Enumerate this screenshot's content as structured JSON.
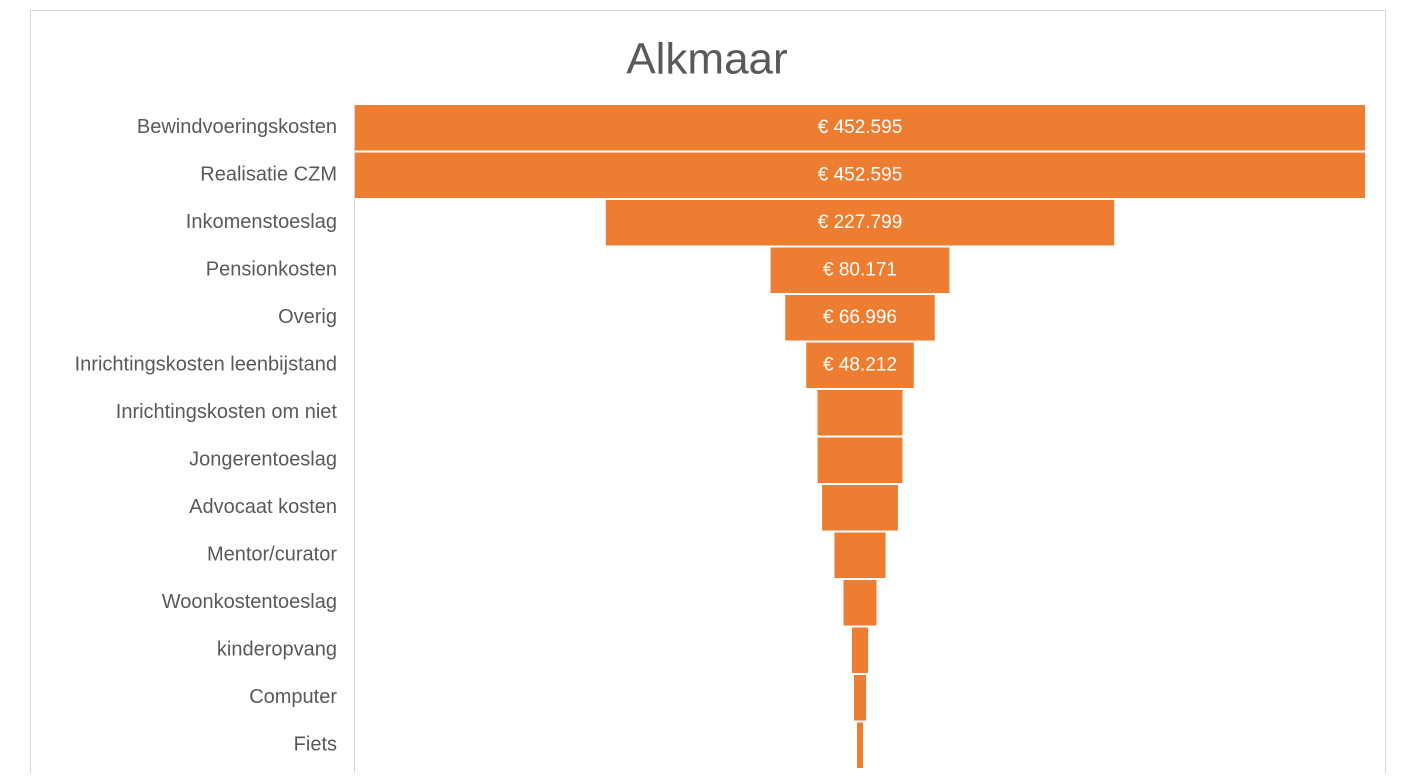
{
  "chart_data": {
    "type": "funnel",
    "title": "Alkmaar",
    "categories": [
      "Bewindvoeringskosten",
      "Realisatie CZM",
      "Inkomenstoeslag",
      "Pensionkosten",
      "Overig",
      "Inrichtingskosten leenbijstand",
      "Inrichtingskosten om niet",
      "Jongerentoeslag",
      "Advocaat kosten",
      "Mentor/curator",
      "Woonkostentoeslag",
      "kinderopvang",
      "Computer",
      "Fiets"
    ],
    "values": [
      452595,
      452595,
      227799,
      80171,
      66996,
      48212,
      38100,
      38000,
      34000,
      22900,
      14800,
      7200,
      5400,
      2700
    ],
    "value_labels": [
      "€ 452.595",
      "€ 452.595",
      "€ 227.799",
      "€ 80.171",
      "€ 66.996",
      "€ 48.212",
      null,
      null,
      null,
      null,
      null,
      null,
      null,
      null
    ],
    "color": "#ed7d31"
  }
}
